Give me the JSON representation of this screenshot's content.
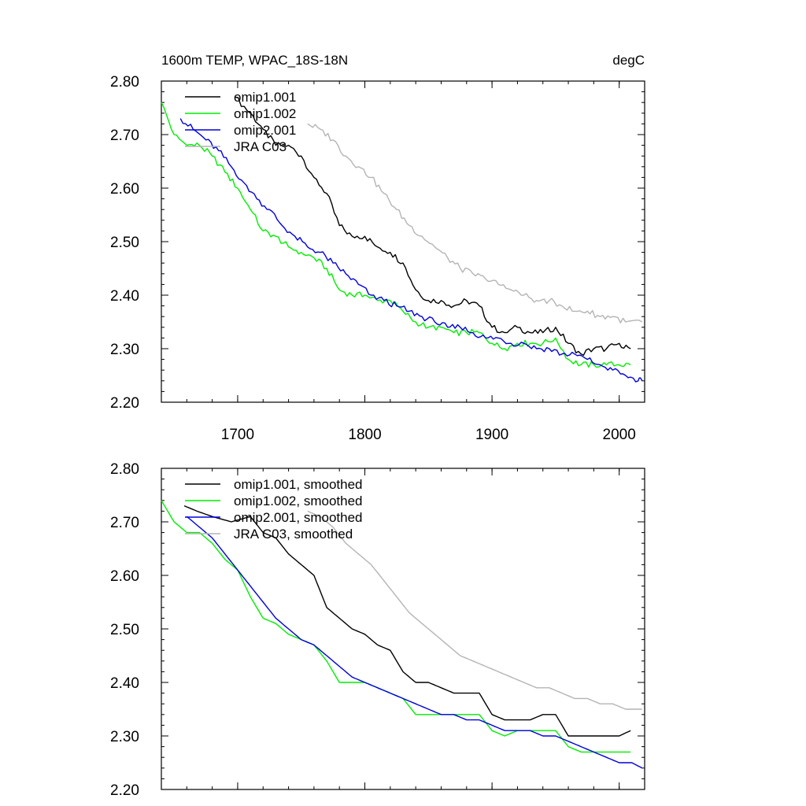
{
  "figure": {
    "title_left": "1600m TEMP, WPAC_18S-18N",
    "title_right": "degC"
  },
  "chart_data": [
    {
      "type": "line",
      "panel": "top",
      "xlim": [
        1640,
        2020
      ],
      "ylim": [
        2.2,
        2.8
      ],
      "xticks": [
        1700,
        1800,
        1900,
        2000
      ],
      "xtick_labels": [
        "1700",
        "1800",
        "1900",
        "2000"
      ],
      "yticks": [
        2.2,
        2.3,
        2.4,
        2.5,
        2.6,
        2.7,
        2.8
      ],
      "ytick_labels": [
        "2.20",
        "2.30",
        "2.40",
        "2.50",
        "2.60",
        "2.70",
        "2.80"
      ],
      "legend_position": "top-left",
      "series": [
        {
          "name": "omip1.001",
          "color": "#000000",
          "x": [
            1698,
            1710,
            1720,
            1730,
            1740,
            1750,
            1760,
            1770,
            1780,
            1790,
            1800,
            1810,
            1820,
            1830,
            1840,
            1850,
            1860,
            1870,
            1880,
            1890,
            1900,
            1910,
            1920,
            1930,
            1940,
            1950,
            1960,
            1970,
            1980,
            1990,
            2000,
            2009
          ],
          "y": [
            2.77,
            2.74,
            2.71,
            2.68,
            2.68,
            2.66,
            2.62,
            2.59,
            2.53,
            2.51,
            2.51,
            2.49,
            2.48,
            2.46,
            2.41,
            2.39,
            2.39,
            2.38,
            2.39,
            2.38,
            2.34,
            2.33,
            2.34,
            2.33,
            2.33,
            2.34,
            2.31,
            2.29,
            2.3,
            2.3,
            2.31,
            2.3
          ]
        },
        {
          "name": "omip1.002",
          "color": "#00ee00",
          "x": [
            1640,
            1650,
            1660,
            1670,
            1680,
            1690,
            1700,
            1710,
            1720,
            1730,
            1740,
            1750,
            1760,
            1770,
            1780,
            1790,
            1800,
            1810,
            1820,
            1830,
            1840,
            1850,
            1860,
            1870,
            1880,
            1890,
            1900,
            1910,
            1920,
            1930,
            1940,
            1950,
            1960,
            1970,
            1980,
            1990,
            2000,
            2009
          ],
          "y": [
            2.76,
            2.7,
            2.68,
            2.68,
            2.66,
            2.63,
            2.6,
            2.56,
            2.52,
            2.51,
            2.49,
            2.48,
            2.47,
            2.45,
            2.41,
            2.4,
            2.4,
            2.39,
            2.39,
            2.37,
            2.35,
            2.34,
            2.34,
            2.33,
            2.33,
            2.33,
            2.31,
            2.3,
            2.31,
            2.31,
            2.31,
            2.32,
            2.28,
            2.27,
            2.27,
            2.27,
            2.27,
            2.27
          ]
        },
        {
          "name": "omip2.001",
          "color": "#0000dd",
          "x": [
            1655,
            1665,
            1675,
            1685,
            1695,
            1705,
            1715,
            1725,
            1735,
            1745,
            1755,
            1765,
            1775,
            1785,
            1795,
            1805,
            1815,
            1825,
            1835,
            1845,
            1855,
            1865,
            1875,
            1885,
            1895,
            1905,
            1915,
            1925,
            1935,
            1945,
            1955,
            1965,
            1975,
            1985,
            1995,
            2005,
            2015,
            2018
          ],
          "y": [
            2.73,
            2.71,
            2.69,
            2.67,
            2.64,
            2.61,
            2.58,
            2.56,
            2.53,
            2.51,
            2.49,
            2.48,
            2.46,
            2.44,
            2.42,
            2.4,
            2.39,
            2.38,
            2.37,
            2.36,
            2.35,
            2.34,
            2.34,
            2.33,
            2.32,
            2.32,
            2.31,
            2.31,
            2.3,
            2.3,
            2.29,
            2.29,
            2.28,
            2.27,
            2.26,
            2.25,
            2.24,
            2.24
          ]
        },
        {
          "name": "JRA C03",
          "color": "#b4b4b4",
          "x": [
            1755,
            1765,
            1775,
            1785,
            1795,
            1805,
            1815,
            1825,
            1835,
            1845,
            1855,
            1865,
            1875,
            1885,
            1895,
            1905,
            1915,
            1925,
            1935,
            1945,
            1955,
            1965,
            1975,
            1985,
            1995,
            2005,
            2018
          ],
          "y": [
            2.72,
            2.71,
            2.69,
            2.66,
            2.64,
            2.62,
            2.59,
            2.56,
            2.53,
            2.51,
            2.49,
            2.47,
            2.45,
            2.44,
            2.43,
            2.42,
            2.41,
            2.4,
            2.39,
            2.39,
            2.38,
            2.37,
            2.37,
            2.36,
            2.36,
            2.35,
            2.35
          ]
        }
      ]
    },
    {
      "type": "line",
      "panel": "bottom",
      "xlim": [
        1640,
        2020
      ],
      "ylim": [
        2.2,
        2.8
      ],
      "xticks": [
        1700,
        1800,
        1900,
        2000
      ],
      "yticks": [
        2.2,
        2.3,
        2.4,
        2.5,
        2.6,
        2.7,
        2.8
      ],
      "ytick_labels": [
        "2.20",
        "2.30",
        "2.40",
        "2.50",
        "2.60",
        "2.70",
        "2.80"
      ],
      "legend_position": "top-left",
      "series": [
        {
          "name": "omip1.001, smoothed",
          "color": "#000000",
          "x": [
            1658,
            1668,
            1680,
            1695,
            1710,
            1720,
            1730,
            1740,
            1750,
            1760,
            1770,
            1780,
            1790,
            1800,
            1810,
            1820,
            1830,
            1840,
            1850,
            1860,
            1870,
            1880,
            1890,
            1900,
            1910,
            1920,
            1930,
            1940,
            1950,
            1960,
            1970,
            1980,
            1990,
            2000,
            2009
          ],
          "y": [
            2.73,
            2.72,
            2.71,
            2.7,
            2.71,
            2.68,
            2.67,
            2.64,
            2.62,
            2.6,
            2.54,
            2.52,
            2.5,
            2.49,
            2.47,
            2.46,
            2.42,
            2.4,
            2.4,
            2.39,
            2.38,
            2.38,
            2.38,
            2.34,
            2.33,
            2.33,
            2.33,
            2.34,
            2.34,
            2.3,
            2.3,
            2.3,
            2.3,
            2.3,
            2.31
          ]
        },
        {
          "name": "omip1.002, smoothed",
          "color": "#00ee00",
          "x": [
            1640,
            1650,
            1660,
            1670,
            1680,
            1690,
            1700,
            1710,
            1720,
            1730,
            1740,
            1750,
            1760,
            1770,
            1780,
            1790,
            1800,
            1810,
            1820,
            1830,
            1840,
            1850,
            1860,
            1870,
            1880,
            1890,
            1900,
            1910,
            1920,
            1930,
            1940,
            1950,
            1960,
            1970,
            1980,
            1990,
            2000,
            2009
          ],
          "y": [
            2.74,
            2.7,
            2.68,
            2.68,
            2.66,
            2.63,
            2.61,
            2.56,
            2.52,
            2.51,
            2.49,
            2.48,
            2.47,
            2.44,
            2.4,
            2.4,
            2.4,
            2.39,
            2.38,
            2.37,
            2.34,
            2.34,
            2.34,
            2.34,
            2.34,
            2.34,
            2.31,
            2.3,
            2.31,
            2.31,
            2.31,
            2.31,
            2.28,
            2.27,
            2.27,
            2.27,
            2.27,
            2.27
          ]
        },
        {
          "name": "omip2.001, smoothed",
          "color": "#0000dd",
          "x": [
            1660,
            1670,
            1680,
            1690,
            1700,
            1710,
            1720,
            1730,
            1740,
            1750,
            1760,
            1770,
            1780,
            1790,
            1800,
            1810,
            1820,
            1830,
            1840,
            1850,
            1860,
            1870,
            1880,
            1890,
            1900,
            1910,
            1920,
            1930,
            1940,
            1950,
            1960,
            1970,
            1980,
            1990,
            2000,
            2010,
            2018
          ],
          "y": [
            2.71,
            2.69,
            2.67,
            2.64,
            2.61,
            2.58,
            2.55,
            2.52,
            2.5,
            2.48,
            2.47,
            2.45,
            2.43,
            2.41,
            2.4,
            2.39,
            2.38,
            2.37,
            2.36,
            2.35,
            2.34,
            2.34,
            2.33,
            2.33,
            2.32,
            2.31,
            2.31,
            2.31,
            2.3,
            2.3,
            2.29,
            2.28,
            2.27,
            2.26,
            2.25,
            2.25,
            2.24
          ]
        },
        {
          "name": "JRA C03, smoothed",
          "color": "#b4b4b4",
          "x": [
            1755,
            1765,
            1775,
            1785,
            1795,
            1805,
            1815,
            1825,
            1835,
            1845,
            1855,
            1865,
            1875,
            1885,
            1895,
            1905,
            1915,
            1925,
            1935,
            1945,
            1955,
            1965,
            1975,
            1985,
            1995,
            2005,
            2018
          ],
          "y": [
            2.72,
            2.71,
            2.69,
            2.66,
            2.64,
            2.62,
            2.59,
            2.56,
            2.53,
            2.51,
            2.49,
            2.47,
            2.45,
            2.44,
            2.43,
            2.42,
            2.41,
            2.4,
            2.39,
            2.39,
            2.38,
            2.37,
            2.37,
            2.36,
            2.36,
            2.35,
            2.35
          ]
        }
      ]
    }
  ]
}
